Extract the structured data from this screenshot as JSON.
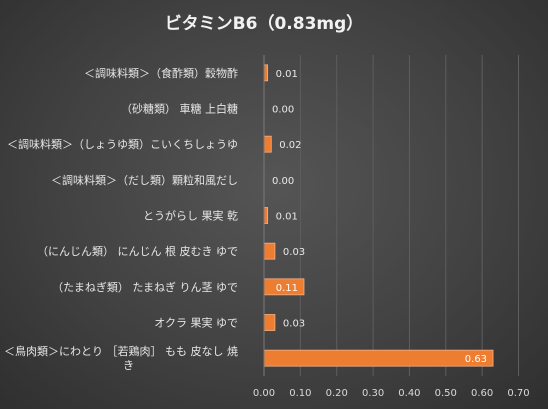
{
  "chart_data": {
    "type": "bar",
    "orientation": "horizontal",
    "title": "ビタミンB6（0.83mg）",
    "categories": [
      [
        "＜調味料類＞（食酢類）穀物酢"
      ],
      [
        "（砂糖類） 車糖 上白糖"
      ],
      [
        "＜調味料類＞（しょうゆ類）こいくちしょうゆ"
      ],
      [
        "＜調味料類＞（だし類）顆粒和風だし"
      ],
      [
        "とうがらし 果実 乾"
      ],
      [
        "（にんじん類） にんじん 根 皮むき ゆで"
      ],
      [
        "（たまねぎ類） たまねぎ りん茎 ゆで"
      ],
      [
        "オクラ 果実 ゆで"
      ],
      [
        "＜鳥肉類＞にわとり ［若鶏肉］ もも 皮なし 焼",
        "き"
      ]
    ],
    "values": [
      0.01,
      0.0,
      0.02,
      0.0,
      0.01,
      0.03,
      0.11,
      0.03,
      0.63
    ],
    "data_labels": [
      "0.01",
      "0.00",
      "0.02",
      "0.00",
      "0.01",
      "0.03",
      "0.11",
      "0.03",
      "0.63"
    ],
    "xlim": [
      0,
      0.7
    ],
    "xticks": [
      "0.00",
      "0.10",
      "0.20",
      "0.30",
      "0.40",
      "0.50",
      "0.60",
      "0.70"
    ],
    "grid": true,
    "legend": "none",
    "colors": {
      "bar": "#ed7d31",
      "bar_border": "#f4b183",
      "label_on_bar": "#ffffff",
      "label_outside": "#e8e8e8",
      "gridline": "#5e5e5e"
    }
  }
}
